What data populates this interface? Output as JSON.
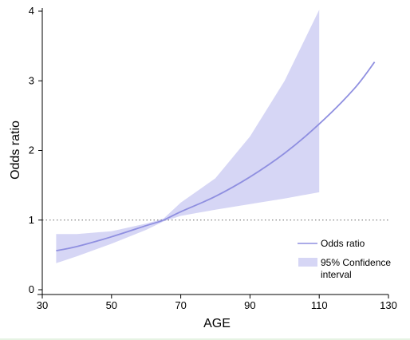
{
  "chart_data": {
    "type": "line",
    "xlabel": "AGE",
    "ylabel": "Odds ratio",
    "xlim": [
      30,
      130
    ],
    "ylim": [
      0,
      4
    ],
    "xticks": [
      30,
      50,
      70,
      90,
      110,
      130
    ],
    "yticks": [
      0,
      1,
      2,
      3,
      4
    ],
    "reference_line": {
      "y": 1,
      "style": "dotted"
    },
    "series": [
      {
        "name": "Odds ratio",
        "kind": "line",
        "color": "#8f8fe0",
        "x": [
          34,
          40,
          50,
          60,
          65,
          70,
          80,
          90,
          100,
          110,
          120,
          126
        ],
        "y": [
          0.56,
          0.62,
          0.76,
          0.92,
          1.0,
          1.12,
          1.34,
          1.62,
          1.96,
          2.38,
          2.88,
          3.27
        ]
      },
      {
        "name": "95% Confidence interval",
        "kind": "band",
        "color": "#d6d6f5",
        "x": [
          34,
          40,
          50,
          60,
          65,
          70,
          80,
          90,
          100,
          110
        ],
        "lower": [
          0.38,
          0.48,
          0.66,
          0.86,
          0.98,
          1.06,
          1.15,
          1.23,
          1.31,
          1.4
        ],
        "upper": [
          0.8,
          0.8,
          0.84,
          0.95,
          1.02,
          1.25,
          1.6,
          2.2,
          3.0,
          4.02
        ]
      }
    ],
    "legend": {
      "placement": "bottom-right",
      "entries": [
        "Odds ratio",
        "95% Confidence interval"
      ]
    }
  }
}
